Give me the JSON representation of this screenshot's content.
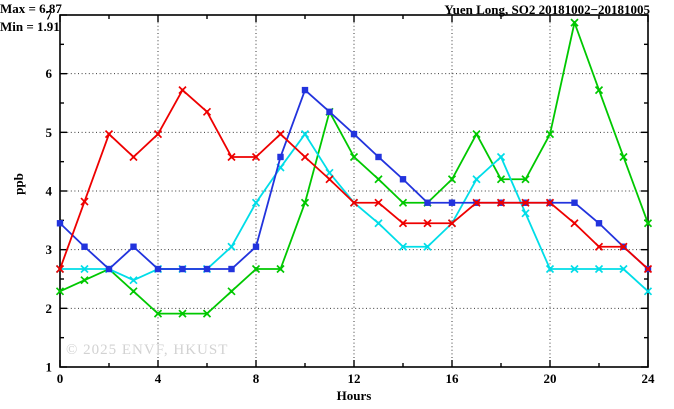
{
  "title": "Yuen Long, SO2 20181002−20181005",
  "annotation": {
    "max_label": "Max = 6.87",
    "min_label": "Min = 1.91"
  },
  "watermark": "© 2025 ENVF, HKUST",
  "chart_data": {
    "type": "line",
    "title": "Yuen Long, SO2 20181002−20181005",
    "xlabel": "Hours",
    "ylabel": "ppb",
    "xlim": [
      0,
      24
    ],
    "ylim": [
      1,
      7
    ],
    "xticks_major": [
      0,
      4,
      8,
      12,
      16,
      20,
      24
    ],
    "xticks_minor": [
      2,
      6,
      10,
      14,
      18,
      22
    ],
    "yticks_major": [
      1,
      2,
      3,
      4,
      5,
      6,
      7
    ],
    "yticks_minor": [
      1.5,
      2.5,
      3.5,
      4.5,
      5.5,
      6.5
    ],
    "grid_x_at": [
      4,
      8,
      12,
      16,
      20
    ],
    "grid_y_at": [
      2,
      3,
      4,
      5,
      6
    ],
    "legend": "none",
    "stat_max": 6.87,
    "stat_min": 1.91,
    "x": [
      0,
      1,
      2,
      3,
      4,
      5,
      6,
      7,
      8,
      9,
      10,
      11,
      12,
      13,
      14,
      15,
      16,
      17,
      18,
      19,
      20,
      21,
      22,
      23,
      24
    ],
    "series": [
      {
        "name": "green-line",
        "color": "#00c800",
        "marker": "x",
        "values": [
          2.29,
          2.48,
          2.67,
          2.29,
          1.91,
          1.91,
          1.91,
          2.29,
          2.67,
          2.67,
          3.8,
          5.35,
          4.58,
          4.2,
          3.8,
          3.8,
          4.2,
          4.97,
          4.2,
          4.2,
          4.97,
          6.87,
          5.72,
          4.58,
          3.45
        ]
      },
      {
        "name": "cyan-line",
        "color": "#00dde8",
        "marker": "x",
        "values": [
          2.67,
          2.67,
          2.67,
          2.48,
          2.67,
          2.67,
          2.67,
          3.05,
          3.8,
          4.4,
          4.97,
          4.31,
          3.8,
          3.45,
          3.05,
          3.05,
          3.45,
          4.2,
          4.58,
          3.62,
          2.67,
          2.67,
          2.67,
          2.67,
          2.29
        ]
      },
      {
        "name": "blue-line",
        "color": "#2233dd",
        "marker": "square",
        "values": [
          3.45,
          3.05,
          2.67,
          3.05,
          2.67,
          2.67,
          2.67,
          2.67,
          3.05,
          4.58,
          5.72,
          5.35,
          4.97,
          4.58,
          4.2,
          3.8,
          3.8,
          3.8,
          3.8,
          3.8,
          3.8,
          3.8,
          3.45,
          3.05,
          2.67
        ]
      },
      {
        "name": "red-line",
        "color": "#ee0000",
        "marker": "x",
        "values": [
          2.67,
          3.82,
          4.97,
          4.58,
          4.97,
          5.72,
          5.35,
          4.58,
          4.58,
          4.97,
          4.58,
          4.2,
          3.8,
          3.8,
          3.45,
          3.45,
          3.45,
          3.8,
          3.8,
          3.8,
          3.8,
          3.45,
          3.05,
          3.05,
          2.67
        ]
      }
    ]
  }
}
